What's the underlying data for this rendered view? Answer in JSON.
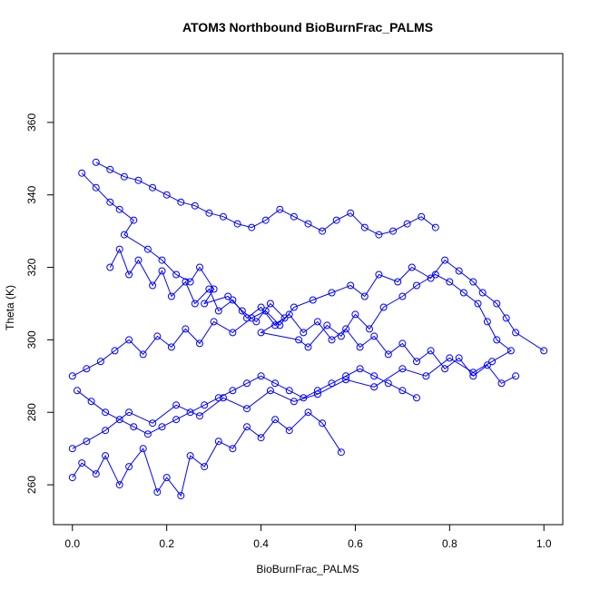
{
  "chart_data": {
    "type": "scatter",
    "title": "ATOM3 Northbound BioBurnFrac_PALMS",
    "xlabel": "BioBurnFrac_PALMS",
    "ylabel": "Theta (K)",
    "xlim": [
      -0.04,
      1.04
    ],
    "ylim": [
      249,
      379
    ],
    "x_ticks": [
      "0.0",
      "0.2",
      "0.4",
      "0.6",
      "0.8",
      "1.0"
    ],
    "x_tick_values": [
      0.0,
      0.2,
      0.4,
      0.6,
      0.8,
      1.0
    ],
    "y_ticks": [
      "260",
      "280",
      "300",
      "320",
      "340",
      "360"
    ],
    "y_tick_values": [
      260,
      280,
      300,
      320,
      340,
      360
    ],
    "marker": "open-circle",
    "connect_points": true,
    "series_color": "#0000ff",
    "grid": false,
    "legend": "none",
    "series": [
      {
        "x": [
          0.02,
          0.05,
          0.08,
          0.1,
          0.13,
          0.11,
          0.16,
          0.19,
          0.22,
          0.25,
          0.27,
          0.3,
          0.28,
          0.33,
          0.36,
          0.39,
          0.42,
          0.45,
          0.4,
          0.48,
          0.5,
          0.54,
          0.57,
          0.6,
          0.63,
          0.66,
          0.7,
          0.73,
          0.77,
          0.8,
          0.83,
          0.86,
          0.88,
          0.9,
          0.93,
          0.89,
          0.85,
          0.8,
          0.75,
          0.7,
          0.64,
          0.58,
          0.52,
          0.47,
          0.42,
          0.37,
          0.32,
          0.27,
          0.22,
          0.17,
          0.12,
          0.07,
          0.03,
          0.0
        ],
        "y": [
          346,
          342,
          338,
          336,
          333,
          329,
          325,
          322,
          318,
          316,
          320,
          314,
          310,
          312,
          308,
          305,
          310,
          306,
          302,
          300,
          298,
          304,
          301,
          307,
          303,
          309,
          312,
          315,
          318,
          316,
          313,
          310,
          305,
          300,
          297,
          294,
          291,
          295,
          290,
          292,
          287,
          289,
          285,
          283,
          286,
          281,
          284,
          279,
          282,
          277,
          280,
          275,
          272,
          270
        ]
      },
      {
        "x": [
          0.0,
          0.03,
          0.06,
          0.09,
          0.12,
          0.15,
          0.18,
          0.21,
          0.24,
          0.27,
          0.3,
          0.34,
          0.38,
          0.41,
          0.44,
          0.47,
          0.51,
          0.55,
          0.59,
          0.62,
          0.65,
          0.69,
          0.72,
          0.76,
          0.79,
          0.82,
          0.85,
          0.87,
          0.9,
          0.92,
          0.94,
          1.0
        ],
        "y": [
          290,
          292,
          294,
          297,
          300,
          296,
          301,
          298,
          303,
          299,
          305,
          302,
          306,
          308,
          304,
          309,
          311,
          313,
          315,
          312,
          318,
          316,
          320,
          317,
          322,
          319,
          316,
          313,
          310,
          306,
          302,
          297
        ]
      },
      {
        "x": [
          0.0,
          0.02,
          0.05,
          0.07,
          0.1,
          0.12,
          0.15,
          0.18,
          0.2,
          0.23,
          0.25,
          0.28,
          0.31,
          0.34,
          0.37,
          0.4,
          0.43,
          0.46,
          0.5,
          0.53,
          0.57
        ],
        "y": [
          262,
          266,
          263,
          268,
          260,
          265,
          270,
          258,
          262,
          257,
          268,
          265,
          272,
          270,
          276,
          273,
          278,
          275,
          280,
          277,
          269
        ]
      },
      {
        "x": [
          0.05,
          0.08,
          0.11,
          0.14,
          0.17,
          0.2,
          0.23,
          0.26,
          0.29,
          0.32,
          0.35,
          0.38,
          0.41,
          0.44,
          0.47,
          0.5,
          0.53,
          0.56,
          0.59,
          0.62,
          0.65,
          0.68,
          0.71,
          0.74,
          0.77
        ],
        "y": [
          349,
          347,
          345,
          344,
          342,
          340,
          338,
          337,
          335,
          334,
          332,
          331,
          333,
          336,
          334,
          332,
          330,
          333,
          335,
          331,
          329,
          330,
          332,
          334,
          331
        ]
      },
      {
        "x": [
          0.08,
          0.1,
          0.12,
          0.14,
          0.17,
          0.19,
          0.21,
          0.24,
          0.26,
          0.29,
          0.31,
          0.34,
          0.37,
          0.4,
          0.43,
          0.46,
          0.49,
          0.52,
          0.55,
          0.58,
          0.61,
          0.64,
          0.67,
          0.7,
          0.73,
          0.76,
          0.79,
          0.82,
          0.85,
          0.88,
          0.91,
          0.94
        ],
        "y": [
          320,
          325,
          318,
          322,
          315,
          319,
          312,
          316,
          310,
          314,
          308,
          311,
          306,
          309,
          304,
          307,
          302,
          305,
          300,
          303,
          298,
          301,
          296,
          299,
          294,
          297,
          292,
          295,
          290,
          293,
          288,
          290
        ]
      },
      {
        "x": [
          0.01,
          0.04,
          0.07,
          0.1,
          0.13,
          0.16,
          0.19,
          0.22,
          0.25,
          0.28,
          0.31,
          0.34,
          0.37,
          0.4,
          0.43,
          0.46,
          0.49,
          0.52,
          0.55,
          0.58,
          0.61,
          0.64,
          0.67,
          0.7,
          0.73
        ],
        "y": [
          286,
          283,
          280,
          278,
          276,
          274,
          276,
          278,
          280,
          282,
          284,
          286,
          288,
          290,
          288,
          286,
          284,
          286,
          288,
          290,
          292,
          290,
          288,
          286,
          284
        ]
      }
    ]
  }
}
